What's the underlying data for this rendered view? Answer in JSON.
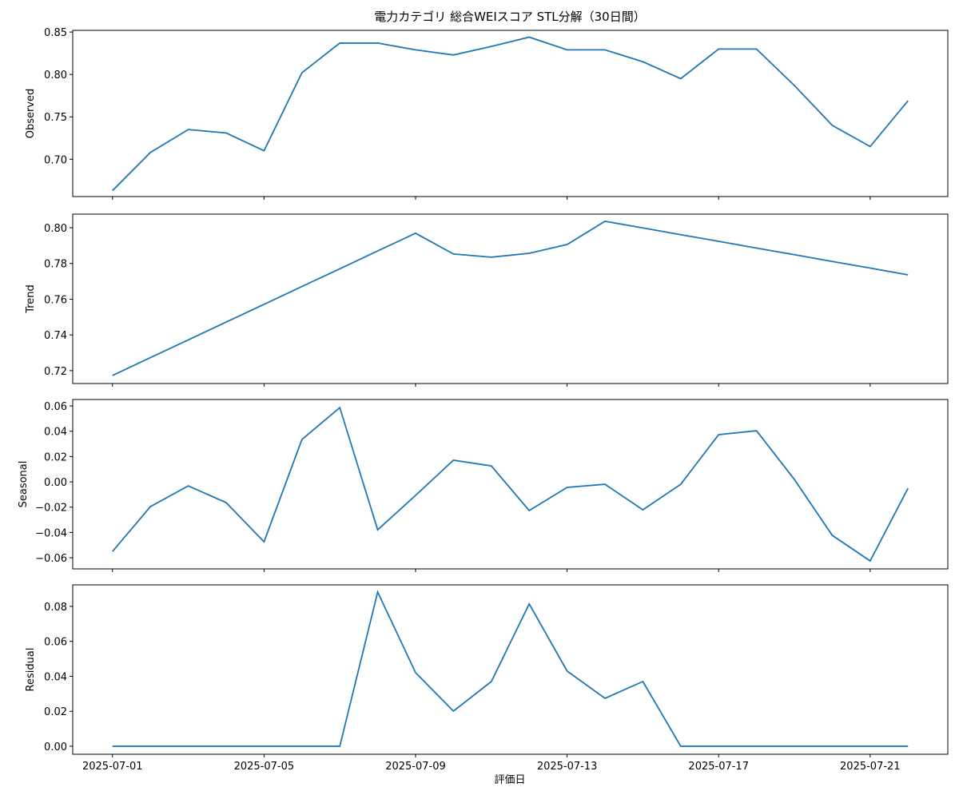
{
  "chart_data": [
    {
      "type": "line",
      "title": "電力カテゴリ 総合WEIスコア STL分解（30日間）",
      "ylabel": "Observed",
      "color": "#1f77b4",
      "x": [
        "2025-07-01",
        "2025-07-02",
        "2025-07-03",
        "2025-07-04",
        "2025-07-05",
        "2025-07-06",
        "2025-07-07",
        "2025-07-08",
        "2025-07-09",
        "2025-07-10",
        "2025-07-11",
        "2025-07-12",
        "2025-07-13",
        "2025-07-14",
        "2025-07-15",
        "2025-07-16",
        "2025-07-17",
        "2025-07-18",
        "2025-07-19",
        "2025-07-20",
        "2025-07-21",
        "2025-07-22"
      ],
      "values": [
        0.663,
        0.708,
        0.735,
        0.731,
        0.71,
        0.802,
        0.837,
        0.837,
        0.829,
        0.823,
        0.833,
        0.844,
        0.829,
        0.829,
        0.815,
        0.795,
        0.83,
        0.83,
        0.787,
        0.74,
        0.715,
        0.769
      ],
      "xlim": [
        "2025-06-29T22:48:00Z",
        "2025-07-23T01:12:00Z"
      ],
      "ylim": [
        0.656,
        0.852
      ],
      "yticks": [
        {
          "value": 0.7,
          "label": "0.70"
        },
        0.75,
        {
          "value": 0.8,
          "label": "0.80"
        },
        0.85
      ]
    },
    {
      "type": "line",
      "ylabel": "Trend",
      "color": "#1f77b4",
      "x": [
        "2025-07-01",
        "2025-07-02",
        "2025-07-03",
        "2025-07-04",
        "2025-07-05",
        "2025-07-06",
        "2025-07-07",
        "2025-07-08",
        "2025-07-09",
        "2025-07-10",
        "2025-07-11",
        "2025-07-12",
        "2025-07-13",
        "2025-07-14",
        "2025-07-15",
        "2025-07-16",
        "2025-07-17",
        "2025-07-18",
        "2025-07-19",
        "2025-07-20",
        "2025-07-21",
        "2025-07-22"
      ],
      "values": [
        0.7173,
        0.7273,
        0.7372,
        0.7472,
        0.7571,
        0.7671,
        0.777,
        0.787,
        0.7969,
        0.7853,
        0.7835,
        0.7857,
        0.7906,
        0.8036,
        0.7999,
        0.7961,
        0.7924,
        0.7886,
        0.7849,
        0.7811,
        0.7774,
        0.7736
      ],
      "xlim": [
        "2025-06-29T22:48:00Z",
        "2025-07-23T01:12:00Z"
      ],
      "ylim": [
        0.7128,
        0.8076
      ],
      "yticks": [
        0.72,
        0.74,
        0.76,
        0.78,
        {
          "value": 0.8,
          "label": "0.80"
        }
      ]
    },
    {
      "type": "line",
      "ylabel": "Seasonal",
      "color": "#1f77b4",
      "x": [
        "2025-07-01",
        "2025-07-02",
        "2025-07-03",
        "2025-07-04",
        "2025-07-05",
        "2025-07-06",
        "2025-07-07",
        "2025-07-08",
        "2025-07-09",
        "2025-07-10",
        "2025-07-11",
        "2025-07-12",
        "2025-07-13",
        "2025-07-14",
        "2025-07-15",
        "2025-07-16",
        "2025-07-17",
        "2025-07-18",
        "2025-07-19",
        "2025-07-20",
        "2025-07-21",
        "2025-07-22"
      ],
      "values": [
        -0.055,
        -0.0196,
        -0.0032,
        -0.0164,
        -0.0474,
        0.0335,
        0.0587,
        -0.0379,
        -0.0107,
        0.0171,
        0.0126,
        -0.0227,
        -0.0044,
        -0.0019,
        -0.0221,
        -0.0019,
        0.0373,
        0.0404,
        0.0019,
        -0.0423,
        -0.0625,
        -0.005
      ],
      "xlim": [
        "2025-06-29T22:48:00Z",
        "2025-07-23T01:12:00Z"
      ],
      "ylim": [
        -0.0688,
        0.0651
      ],
      "yticks": [
        {
          "value": -0.06,
          "label": "−0.06"
        },
        {
          "value": -0.04,
          "label": "−0.04"
        },
        {
          "value": -0.02,
          "label": "−0.02"
        },
        {
          "value": 0,
          "label": "0.00"
        },
        0.02,
        0.04,
        0.06
      ]
    },
    {
      "type": "line",
      "ylabel": "Residual",
      "xlabel": "評価日",
      "color": "#1f77b4",
      "x": [
        "2025-07-01",
        "2025-07-02",
        "2025-07-03",
        "2025-07-04",
        "2025-07-05",
        "2025-07-06",
        "2025-07-07",
        "2025-07-08",
        "2025-07-09",
        "2025-07-10",
        "2025-07-11",
        "2025-07-12",
        "2025-07-13",
        "2025-07-14",
        "2025-07-15",
        "2025-07-16",
        "2025-07-17",
        "2025-07-18",
        "2025-07-19",
        "2025-07-20",
        "2025-07-21",
        "2025-07-22"
      ],
      "values": [
        0,
        0,
        0,
        0,
        0,
        0,
        0,
        0.0882,
        0.0421,
        0.0201,
        0.037,
        0.0814,
        0.043,
        0.0274,
        0.037,
        0,
        0,
        0,
        0,
        0,
        0,
        0
      ],
      "xlim": [
        "2025-06-29T22:48:00Z",
        "2025-07-23T01:12:00Z"
      ],
      "ylim": [
        -0.0046,
        0.0923
      ],
      "yticks": [
        {
          "value": 0,
          "label": "0.00"
        },
        0.02,
        0.04,
        0.06,
        0.08
      ],
      "xticks": [
        "2025-07-01",
        "2025-07-05",
        "2025-07-09",
        "2025-07-13",
        "2025-07-17",
        "2025-07-21"
      ]
    }
  ]
}
